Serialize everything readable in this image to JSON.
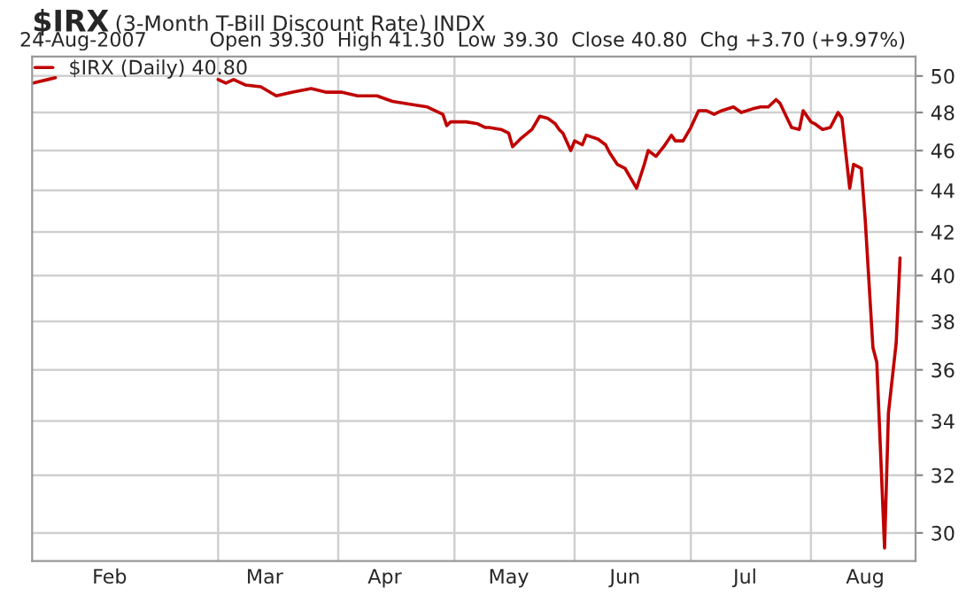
{
  "chart_data": {
    "type": "line",
    "title": "$IRX",
    "subtitle": "(3-Month T-Bill Discount Rate) INDX",
    "annotations": [
      "24-Aug-2007",
      "Open 39.30  High 41.30  Low 39.30  Close 40.80  Chg +3.70 (+9.97%)"
    ],
    "series": [
      {
        "name": "$IRX (Daily) 40.80",
        "color": "#c00000",
        "x": [
          "2007-01-12",
          "2007-01-16",
          "2007-01-18",
          "2007-02-01",
          "2007-03-01",
          "2007-03-03",
          "2007-03-05",
          "2007-03-08",
          "2007-03-12",
          "2007-03-16",
          "2007-03-20",
          "2007-03-25",
          "2007-03-29",
          "2007-04-02",
          "2007-04-06",
          "2007-04-11",
          "2007-04-15",
          "2007-04-21",
          "2007-04-24",
          "2007-04-28",
          "2007-04-29",
          "2007-04-30",
          "2007-05-04",
          "2007-05-07",
          "2007-05-09",
          "2007-05-10",
          "2007-05-13",
          "2007-05-15",
          "2007-05-16",
          "2007-05-18",
          "2007-05-21",
          "2007-05-23",
          "2007-05-25",
          "2007-05-27",
          "2007-05-28",
          "2007-05-29",
          "2007-05-31",
          "2007-06-01",
          "2007-06-03",
          "2007-06-04",
          "2007-06-07",
          "2007-06-09",
          "2007-06-10",
          "2007-06-12",
          "2007-06-14",
          "2007-06-17",
          "2007-06-19",
          "2007-06-20",
          "2007-06-22",
          "2007-06-24",
          "2007-06-26",
          "2007-06-27",
          "2007-06-29",
          "2007-07-01",
          "2007-07-03",
          "2007-07-05",
          "2007-07-07",
          "2007-07-09",
          "2007-07-12",
          "2007-07-14",
          "2007-07-17",
          "2007-07-19",
          "2007-07-21",
          "2007-07-23",
          "2007-07-24",
          "2007-07-27",
          "2007-07-29",
          "2007-07-30",
          "2007-08-01",
          "2007-08-02",
          "2007-08-04",
          "2007-08-06",
          "2007-08-08",
          "2007-08-09",
          "2007-08-11",
          "2007-08-12",
          "2007-08-14",
          "2007-08-15",
          "2007-08-17",
          "2007-08-18",
          "2007-08-20",
          "2007-08-21",
          "2007-08-23",
          "2007-08-24"
        ],
        "values": [
          49.6,
          49.8,
          49.9,
          null,
          49.8,
          49.6,
          49.8,
          49.5,
          49.4,
          48.9,
          49.1,
          49.3,
          49.1,
          49.1,
          48.9,
          48.9,
          48.6,
          48.4,
          48.3,
          47.9,
          47.3,
          47.5,
          47.5,
          47.4,
          47.2,
          47.2,
          47.1,
          46.9,
          46.2,
          46.6,
          47.1,
          47.8,
          47.7,
          47.4,
          47.1,
          46.9,
          46.0,
          46.5,
          46.3,
          46.8,
          46.6,
          46.3,
          45.9,
          45.3,
          45.1,
          44.1,
          45.3,
          46.0,
          45.7,
          46.2,
          46.8,
          46.5,
          46.5,
          47.2,
          48.1,
          48.1,
          47.9,
          48.1,
          48.3,
          48.0,
          48.2,
          48.3,
          48.3,
          48.7,
          48.5,
          47.2,
          47.1,
          48.1,
          47.5,
          47.4,
          47.1,
          47.2,
          48.0,
          47.7,
          44.1,
          45.3,
          45.1,
          42.6,
          36.9,
          36.3,
          29.5,
          34.3,
          37.1,
          40.8
        ]
      }
    ],
    "xlim": [
      "2007-01-12",
      "2007-08-28"
    ],
    "xticks": [
      {
        "value": "2007-02-01",
        "label": "Feb"
      },
      {
        "value": "2007-03-01",
        "label": null
      },
      {
        "value": "2007-03-13",
        "label": "Mar"
      },
      {
        "value": "2007-04-01",
        "label": null
      },
      {
        "value": "2007-04-13",
        "label": "Apr"
      },
      {
        "value": "2007-05-01",
        "label": null
      },
      {
        "value": "2007-05-15",
        "label": "May"
      },
      {
        "value": "2007-06-01",
        "label": null
      },
      {
        "value": "2007-06-14",
        "label": "Jun"
      },
      {
        "value": "2007-07-01",
        "label": null
      },
      {
        "value": "2007-07-15",
        "label": "Jul"
      },
      {
        "value": "2007-08-01",
        "label": null
      },
      {
        "value": "2007-08-15",
        "label": "Aug"
      }
    ],
    "ylim": [
      29.07,
      51.1
    ],
    "yticks": [
      30,
      32,
      34,
      36,
      38,
      40,
      42,
      44,
      46,
      48,
      50
    ],
    "log": true,
    "grid": true,
    "legend": "top left"
  }
}
